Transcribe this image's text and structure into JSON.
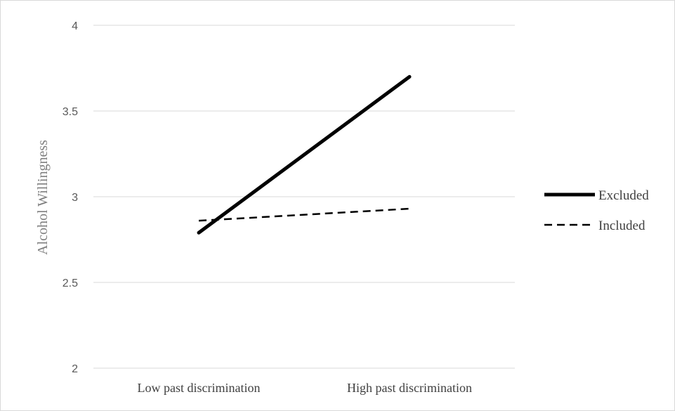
{
  "chart_data": {
    "type": "line",
    "title": "",
    "xlabel": "",
    "ylabel": "Alcohol Willingness",
    "categories": [
      "Low past discrimination",
      "High past discrimination"
    ],
    "ylim": [
      2,
      4
    ],
    "yticks": [
      "2",
      "2.5",
      "3",
      "3.5",
      "4"
    ],
    "grid": true,
    "legend_position": "right",
    "series": [
      {
        "name": "Excluded",
        "values": [
          2.79,
          3.7
        ],
        "style": "solid",
        "color": "#000000"
      },
      {
        "name": "Included",
        "values": [
          2.86,
          2.93
        ],
        "style": "dashed",
        "color": "#000000"
      }
    ]
  }
}
